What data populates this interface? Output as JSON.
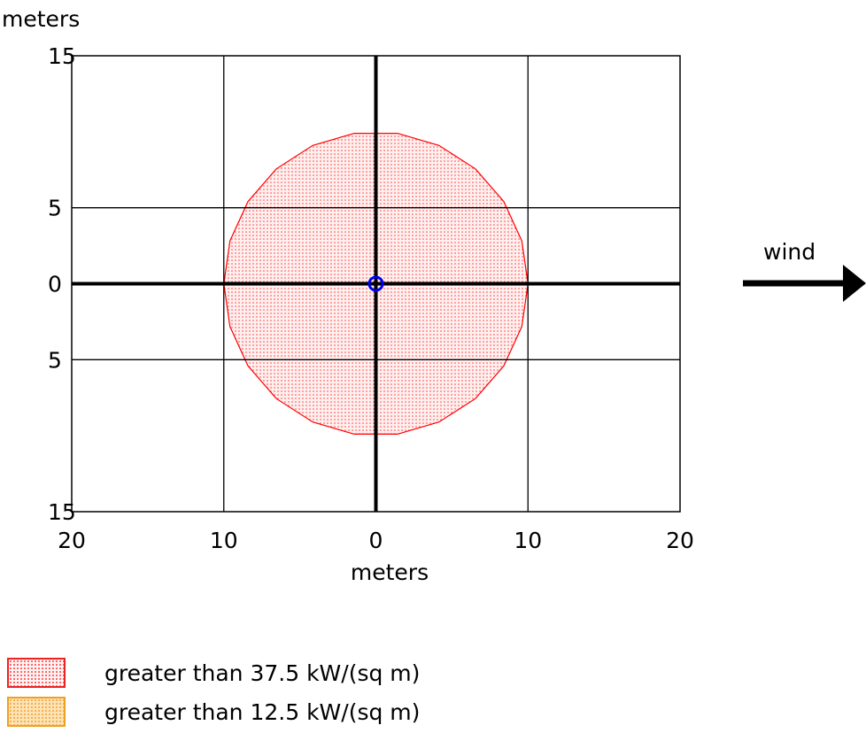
{
  "chart_data": {
    "type": "area",
    "title": "",
    "xlabel": "meters",
    "ylabel": "meters",
    "xlim": [
      -20,
      20
    ],
    "ylim": [
      -15,
      15
    ],
    "x_ticks": [
      -20,
      -10,
      0,
      10,
      20
    ],
    "x_tick_labels": [
      "20",
      "10",
      "0",
      "10",
      "20"
    ],
    "y_ticks": [
      15,
      5,
      0,
      -5,
      -15
    ],
    "y_tick_labels": [
      "15",
      "5",
      "0",
      "5",
      "15"
    ],
    "grid": true,
    "source_point": [
      0,
      0
    ],
    "zones": [
      {
        "label": "greater than 37.5 kW/(sq m)",
        "color": "#ff0000",
        "radius": 10,
        "pattern": "dotted",
        "shape": "threat-zone"
      }
    ],
    "wind_label": "wind",
    "wind_direction": "right"
  },
  "legend": [
    {
      "label": "greater than 37.5 kW/(sq m)",
      "stroke": "#ee2222",
      "fill": "#ff0000",
      "pattern": "dots"
    },
    {
      "label": "greater than 12.5 kW/(sq m)",
      "stroke": "#f0a020",
      "fill": "#f7b548",
      "pattern": "dots"
    }
  ]
}
